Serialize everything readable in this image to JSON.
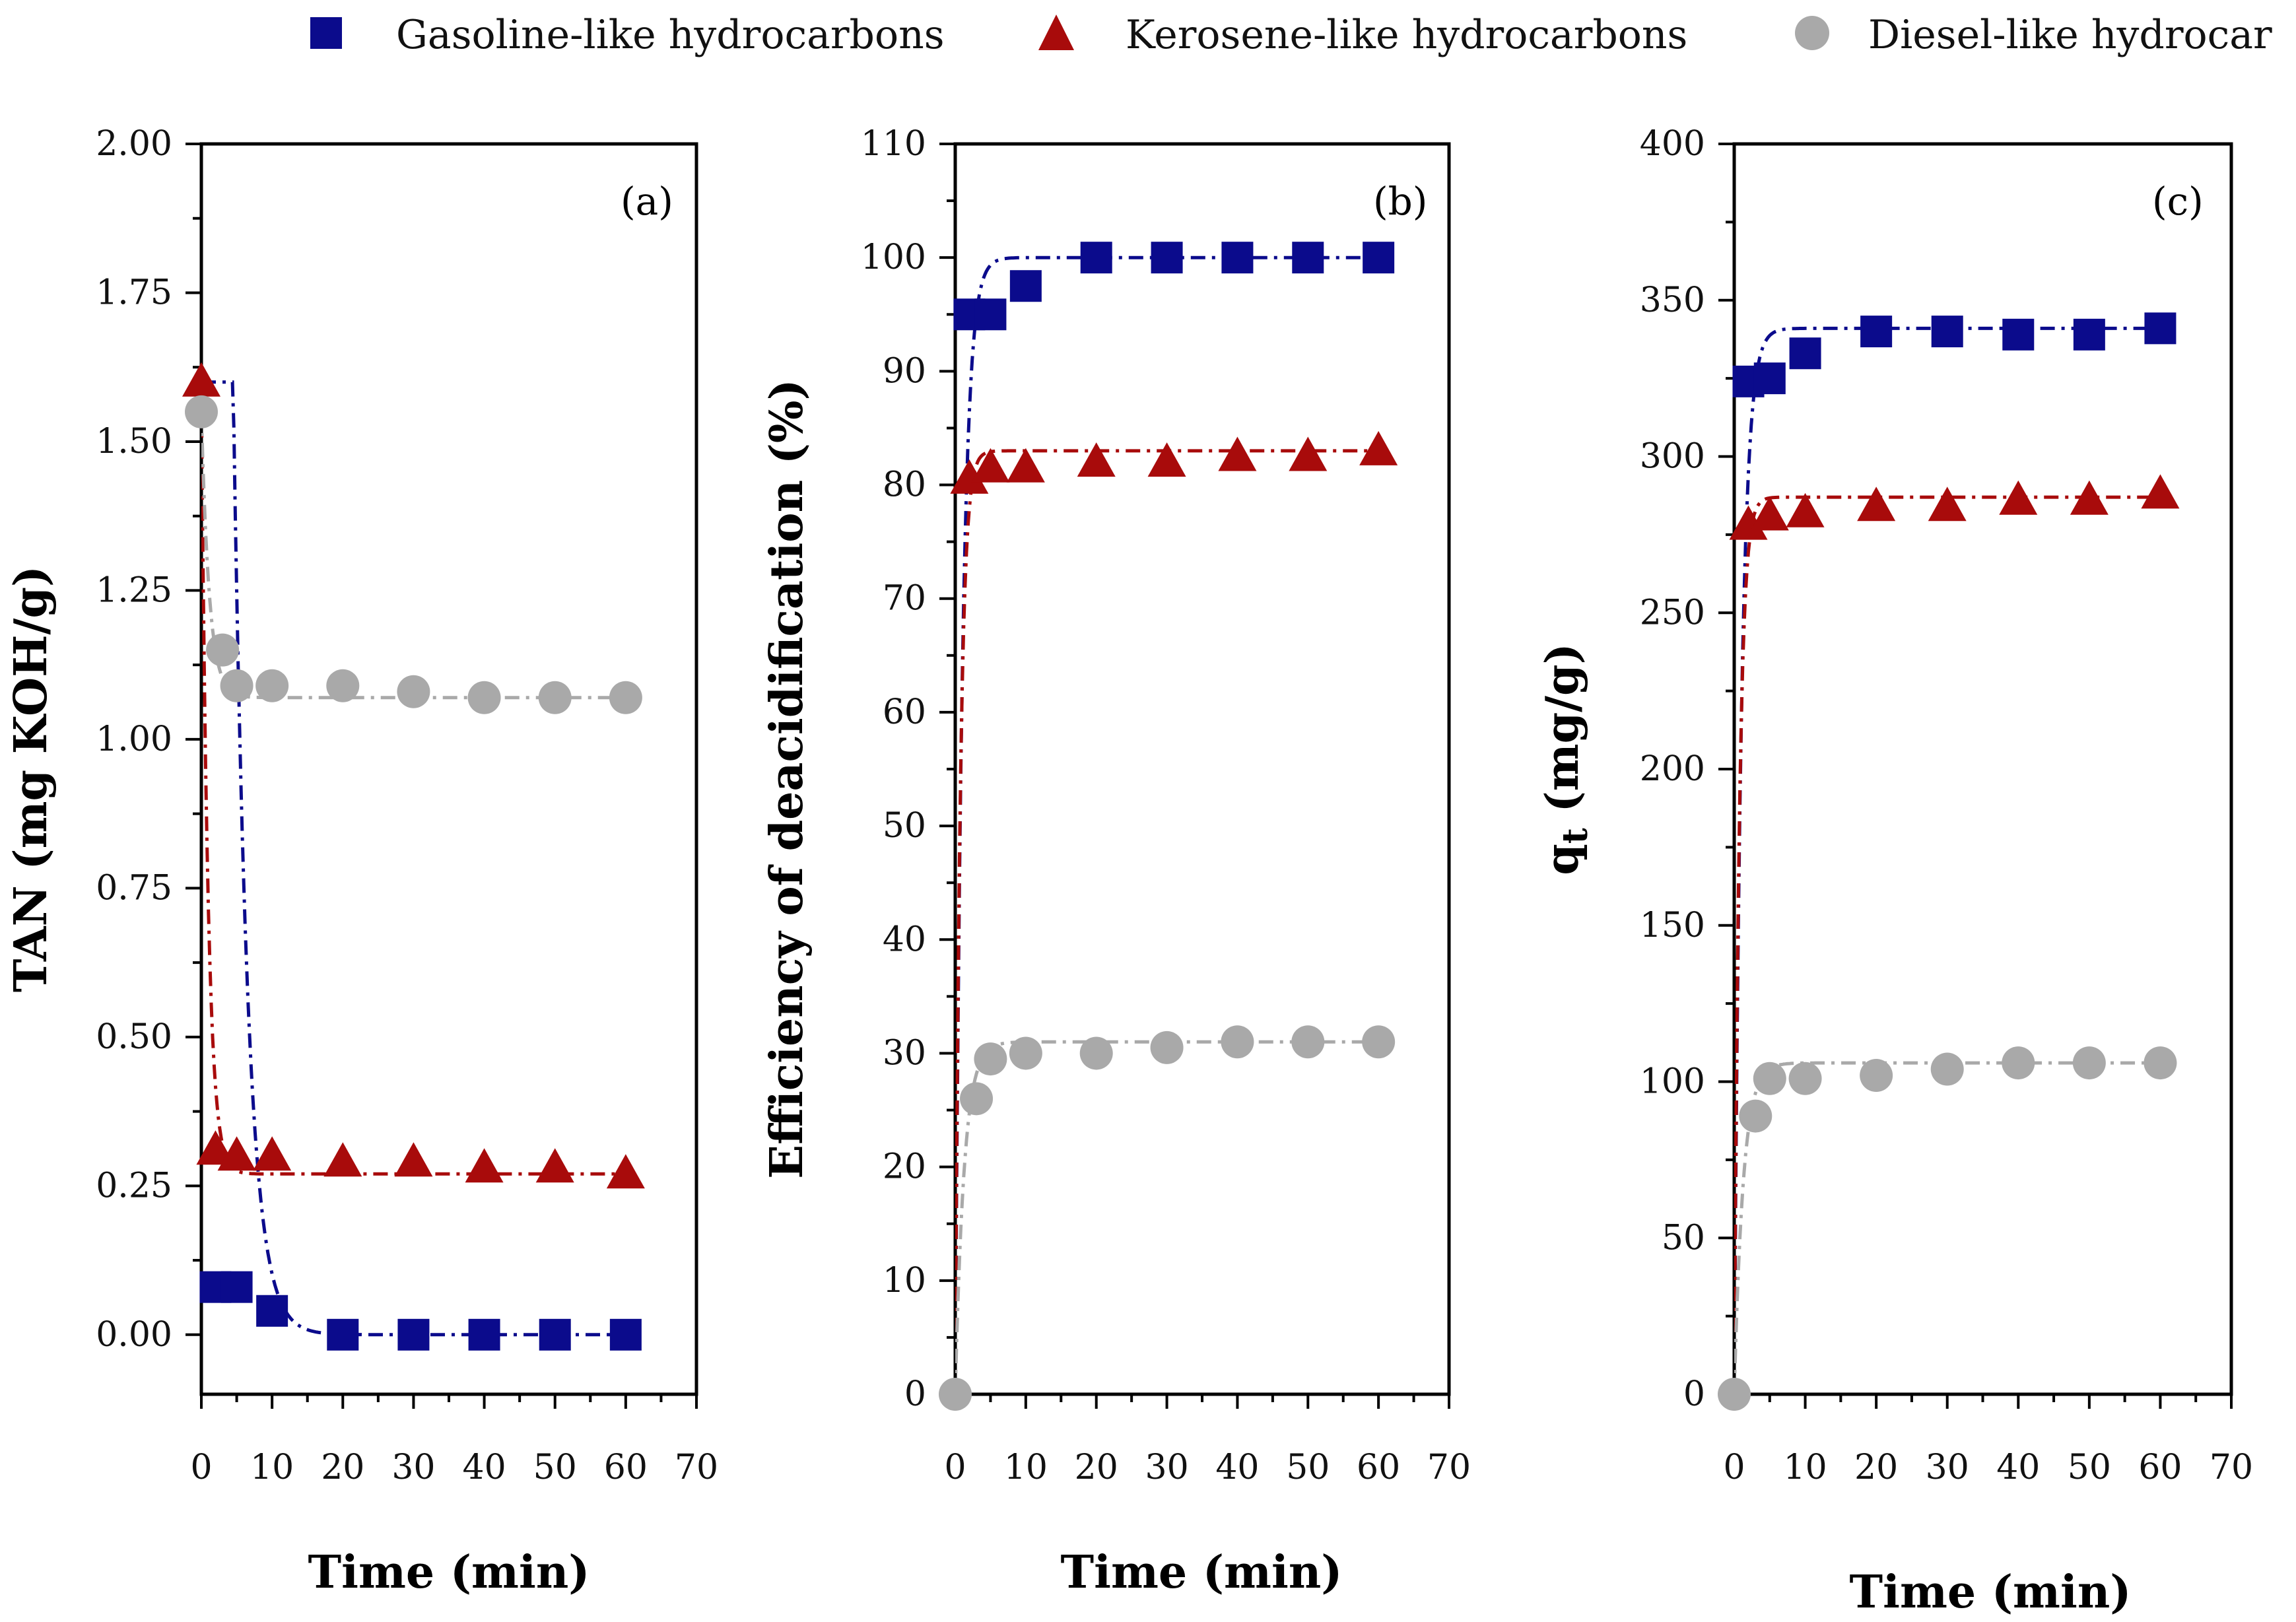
{
  "legend": [
    {
      "name": "Gasoline-like hydrocarbons",
      "marker": "square",
      "color": "#0b0b8c"
    },
    {
      "name": "Kerosene-like hydrocarbons",
      "marker": "triangle",
      "color": "#a80b0b"
    },
    {
      "name": "Diesel-like hydrocar",
      "marker": "circle",
      "color": "#a9a9a9"
    }
  ],
  "chart_data": [
    {
      "type": "scatter",
      "panel_label": "(a)",
      "xlabel": "Time (min)",
      "ylabel": "TAN (mg KOH/g)",
      "xlim": [
        0,
        70
      ],
      "ylim": [
        -0.1,
        2.0
      ],
      "xticks": [
        "0",
        "10",
        "20",
        "30",
        "40",
        "50",
        "60",
        "70"
      ],
      "yticks": [
        "0.00",
        "0.25",
        "0.50",
        "0.75",
        "1.00",
        "1.25",
        "1.50",
        "1.75",
        "2.00"
      ],
      "series": [
        {
          "name": "Gasoline-like hydrocarbons",
          "x": [
            2,
            5,
            10,
            20,
            30,
            40,
            50,
            60
          ],
          "y": [
            0.08,
            0.08,
            0.04,
            0.0,
            0.0,
            0.0,
            0.0,
            0.0
          ]
        },
        {
          "name": "Kerosene-like hydrocarbons",
          "x": [
            0,
            2,
            5,
            10,
            20,
            30,
            40,
            50,
            60
          ],
          "y": [
            1.6,
            0.31,
            0.3,
            0.3,
            0.29,
            0.29,
            0.28,
            0.28,
            0.27
          ]
        },
        {
          "name": "Diesel-like hydrocar",
          "x": [
            0,
            3,
            5,
            10,
            20,
            30,
            40,
            50,
            60
          ],
          "y": [
            1.55,
            1.15,
            1.09,
            1.09,
            1.09,
            1.08,
            1.07,
            1.07,
            1.07
          ]
        }
      ],
      "fits": [
        {
          "name": "Gasoline-like hydrocarbons",
          "y0": 1.6,
          "yinf": 0.0,
          "k": 0.5,
          "delay": 4.5
        },
        {
          "name": "Kerosene-like hydrocarbons",
          "y0": 1.6,
          "yinf": 0.27,
          "k": 1.1,
          "delay": 0
        },
        {
          "name": "Diesel-like hydrocar",
          "y0": 1.55,
          "yinf": 1.07,
          "k": 0.9,
          "delay": 0
        }
      ]
    },
    {
      "type": "scatter",
      "panel_label": "(b)",
      "xlabel": "Time (min)",
      "ylabel": "Efficiency of deacidification (%)",
      "xlim": [
        0,
        70
      ],
      "ylim": [
        0,
        110
      ],
      "xticks": [
        "0",
        "10",
        "20",
        "30",
        "40",
        "50",
        "60",
        "70"
      ],
      "yticks": [
        "0",
        "10",
        "20",
        "30",
        "40",
        "50",
        "60",
        "70",
        "80",
        "90",
        "100",
        "110"
      ],
      "series": [
        {
          "name": "Gasoline-like hydrocarbons",
          "x": [
            2,
            5,
            10,
            20,
            30,
            40,
            50,
            60
          ],
          "y": [
            95,
            95,
            97.5,
            100,
            100,
            100,
            100,
            100
          ]
        },
        {
          "name": "Kerosene-like hydrocarbons",
          "x": [
            2,
            5,
            10,
            20,
            30,
            40,
            50,
            60
          ],
          "y": [
            80.5,
            81.5,
            81.5,
            82,
            82,
            82.5,
            82.5,
            83
          ]
        },
        {
          "name": "Diesel-like hydrocar",
          "x": [
            0,
            3,
            5,
            10,
            20,
            30,
            40,
            50,
            60
          ],
          "y": [
            0,
            26,
            29.5,
            30,
            30,
            30.5,
            31,
            31,
            31
          ]
        }
      ],
      "fits": [
        {
          "name": "Gasoline-like hydrocarbons",
          "y0": 0,
          "yinf": 100,
          "k": 1.0,
          "delay": 0
        },
        {
          "name": "Kerosene-like hydrocarbons",
          "y0": 0,
          "yinf": 83,
          "k": 1.4,
          "delay": 0
        },
        {
          "name": "Diesel-like hydrocar",
          "y0": 0,
          "yinf": 31,
          "k": 0.8,
          "delay": 0
        }
      ]
    },
    {
      "type": "scatter",
      "panel_label": "(c)",
      "xlabel": "Time (min)",
      "ylabel": "q",
      "ylabel_sub": "t",
      "ylabel_rest": " (mg/g)",
      "xlim": [
        0,
        70
      ],
      "ylim": [
        0,
        400
      ],
      "xticks": [
        "0",
        "10",
        "20",
        "30",
        "40",
        "50",
        "60",
        "70"
      ],
      "yticks": [
        "0",
        "50",
        "100",
        "150",
        "200",
        "250",
        "300",
        "350",
        "400"
      ],
      "series": [
        {
          "name": "Gasoline-like hydrocarbons",
          "x": [
            2,
            5,
            10,
            20,
            30,
            40,
            50,
            60
          ],
          "y": [
            324,
            325,
            333,
            340,
            340,
            339,
            339,
            341
          ]
        },
        {
          "name": "Kerosene-like hydrocarbons",
          "x": [
            2,
            5,
            10,
            20,
            30,
            40,
            50,
            60
          ],
          "y": [
            278,
            281,
            282,
            284,
            284,
            286,
            286,
            288
          ]
        },
        {
          "name": "Diesel-like hydrocar",
          "x": [
            0,
            3,
            5,
            10,
            20,
            30,
            40,
            50,
            60
          ],
          "y": [
            0,
            89,
            101,
            101,
            102,
            104,
            106,
            106,
            106
          ]
        }
      ],
      "fits": [
        {
          "name": "Gasoline-like hydrocarbons",
          "y0": 0,
          "yinf": 341,
          "k": 1.0,
          "delay": 0
        },
        {
          "name": "Kerosene-like hydrocarbons",
          "y0": 0,
          "yinf": 287,
          "k": 1.4,
          "delay": 0
        },
        {
          "name": "Diesel-like hydrocar",
          "y0": 0,
          "yinf": 106,
          "k": 0.8,
          "delay": 0
        }
      ]
    }
  ]
}
